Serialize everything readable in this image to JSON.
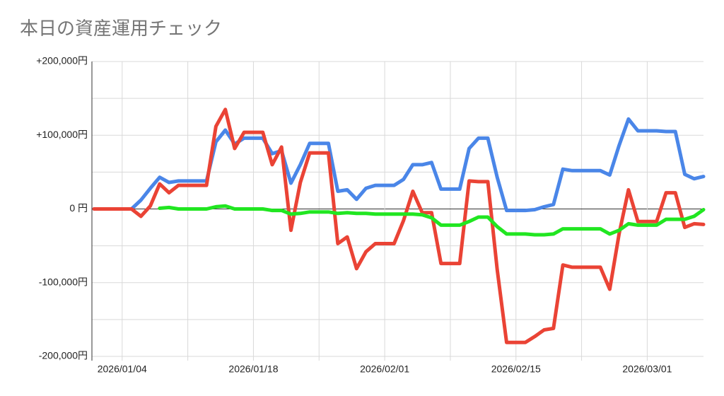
{
  "chart_data": {
    "type": "line",
    "title": "本日の資産運用チェック",
    "x": [
      "2026/01/01",
      "2026/01/02",
      "2026/01/03",
      "2026/01/04",
      "2026/01/05",
      "2026/01/06",
      "2026/01/07",
      "2026/01/08",
      "2026/01/09",
      "2026/01/10",
      "2026/01/11",
      "2026/01/12",
      "2026/01/13",
      "2026/01/14",
      "2026/01/15",
      "2026/01/16",
      "2026/01/17",
      "2026/01/18",
      "2026/01/19",
      "2026/01/20",
      "2026/01/21",
      "2026/01/22",
      "2026/01/23",
      "2026/01/24",
      "2026/01/25",
      "2026/01/26",
      "2026/01/27",
      "2026/01/28",
      "2026/01/29",
      "2026/01/30",
      "2026/01/31",
      "2026/02/01",
      "2026/02/02",
      "2026/02/03",
      "2026/02/04",
      "2026/02/05",
      "2026/02/06",
      "2026/02/07",
      "2026/02/08",
      "2026/02/09",
      "2026/02/10",
      "2026/02/11",
      "2026/02/12",
      "2026/02/13",
      "2026/02/14",
      "2026/02/15",
      "2026/02/16",
      "2026/02/17",
      "2026/02/18",
      "2026/02/19",
      "2026/02/20",
      "2026/02/21",
      "2026/02/22",
      "2026/02/23",
      "2026/02/24",
      "2026/02/25",
      "2026/02/26",
      "2026/02/27",
      "2026/02/28",
      "2026/03/01",
      "2026/03/02",
      "2026/03/03",
      "2026/03/04",
      "2026/03/05",
      "2026/03/06",
      "2026/03/07"
    ],
    "series": [
      {
        "color": "#4a86e8",
        "values": [
          0,
          0,
          0,
          0,
          0,
          12000,
          28000,
          43000,
          36000,
          38000,
          38000,
          38000,
          38000,
          91000,
          107000,
          88000,
          96000,
          96000,
          96000,
          75000,
          79000,
          35000,
          60000,
          89000,
          89000,
          89000,
          24000,
          26000,
          13000,
          28000,
          32000,
          32000,
          32000,
          40000,
          60000,
          60000,
          63000,
          27000,
          27000,
          27000,
          82000,
          96000,
          96000,
          43000,
          -2000,
          -2000,
          -2000,
          -1000,
          3000,
          6000,
          54000,
          52000,
          52000,
          52000,
          52000,
          46000,
          86000,
          122000,
          106000,
          106000,
          106000,
          105000,
          105000,
          47000,
          41000,
          44000
        ]
      },
      {
        "color": "#ea4335",
        "values": [
          0,
          0,
          0,
          0,
          0,
          -10000,
          4000,
          34000,
          22000,
          32000,
          32000,
          32000,
          32000,
          112000,
          135000,
          82000,
          104000,
          104000,
          104000,
          60000,
          84000,
          -29000,
          36000,
          76000,
          76000,
          76000,
          -47000,
          -38000,
          -81000,
          -58000,
          -47000,
          -47000,
          -47000,
          -16000,
          24000,
          -5000,
          -5000,
          -74000,
          -74000,
          -74000,
          38000,
          37000,
          37000,
          -82000,
          -181000,
          -181000,
          -181000,
          -173000,
          -164000,
          -162000,
          -76000,
          -79000,
          -79000,
          -79000,
          -79000,
          -109000,
          -34000,
          26000,
          -17000,
          -17000,
          -17000,
          22000,
          22000,
          -25000,
          -20000,
          -21000
        ]
      },
      {
        "color": "#21e621",
        "values": [
          null,
          null,
          null,
          null,
          null,
          null,
          null,
          1000,
          2000,
          0,
          0,
          0,
          0,
          3000,
          4000,
          0,
          0,
          0,
          0,
          -2000,
          -2000,
          -7000,
          -6000,
          -4000,
          -4000,
          -4000,
          -6000,
          -5000,
          -6000,
          -6000,
          -7000,
          -7000,
          -7000,
          -7000,
          -7000,
          -8000,
          -12000,
          -22000,
          -22000,
          -22000,
          -17000,
          -11000,
          -11000,
          -24000,
          -34000,
          -34000,
          -34000,
          -35000,
          -35000,
          -34000,
          -27000,
          -27000,
          -27000,
          -27000,
          -27000,
          -34000,
          -29000,
          -20000,
          -22000,
          -22000,
          -22000,
          -14000,
          -14000,
          -14000,
          -10000,
          -1000
        ]
      }
    ],
    "xlim": [
      "2026/01/01",
      "2026/03/07"
    ],
    "xticks": [
      "2026/01/04",
      "2026/01/18",
      "2026/02/01",
      "2026/02/15",
      "2026/03/01"
    ],
    "minor_xticks": [
      "2026/01/11",
      "2026/01/25",
      "2026/02/08",
      "2026/02/22"
    ],
    "ylim": [
      -200000,
      200000
    ],
    "yticks": [
      {
        "value": 200000,
        "label": "+200,000円"
      },
      {
        "value": 100000,
        "label": "+100,000円"
      },
      {
        "value": 0,
        "label": "0 円"
      },
      {
        "value": -100000,
        "label": "-100,000円"
      },
      {
        "value": -200000,
        "label": "-200,000円"
      }
    ],
    "minor_yticks": [
      150000,
      50000,
      -50000,
      -150000
    ],
    "grid": true
  }
}
